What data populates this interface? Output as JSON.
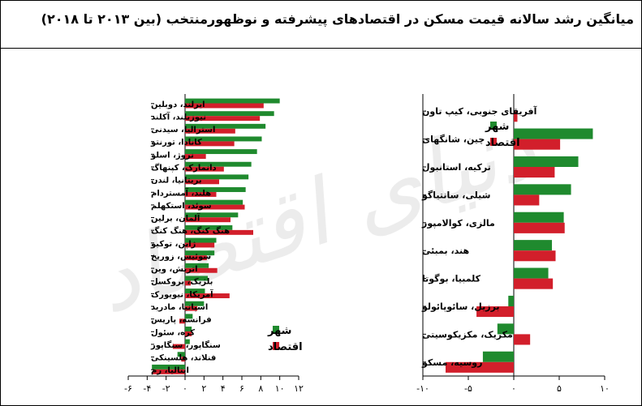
{
  "title": "میانگین رشد سالانه قیمت مسکن در اقتصادهای پیشرفته و نوظهورمنتخب (بین ۲۰۱۳ تا ۲۰۱۸)",
  "watermark": "دنیای اقتصاد",
  "colors": {
    "city": "#1f8a2e",
    "economy": "#d21f2b",
    "city_faded": "#7ec98a",
    "economy_faded": "#f0908a"
  },
  "chart_data": [
    {
      "type": "bar",
      "orientation": "horizontal",
      "title": "",
      "xlim": [
        -6,
        12
      ],
      "xticks": [
        -6,
        -4,
        -2,
        0,
        2,
        4,
        6,
        8,
        10,
        12
      ],
      "legend": {
        "position": "bottom-left",
        "entries": [
          "شهر",
          "اقتصاد"
        ]
      },
      "categories": [
        "ایرلند، دوبلین",
        "نیوزیلند، آکلند",
        "استرالیا، سیدنی",
        "کانادا، تورنتو",
        "نروژ، اسلو",
        "دانمارک، کپنهاگ",
        "بریتانیا، لندن",
        "هلند، آمستردام",
        "سوئد، استکهلم",
        "آلمان، برلین",
        "هنگ کنگ، هنگ کنگ",
        "ژاپن، توکیو",
        "سوئیس، زوریخ",
        "اتریش، وین",
        "بلژیک، بروکسل",
        "آمریکا، نیویورک",
        "اسپانیا، مادرید",
        "فرانسه، پاریس",
        "کره، سئول",
        "سنگاپور، سنگاپور",
        "فنلاند، هلسینکی",
        "ایتالیا، رم"
      ],
      "series": [
        {
          "name": "شهر",
          "values": [
            10.0,
            9.4,
            8.5,
            8.1,
            7.6,
            7.0,
            6.7,
            6.4,
            6.1,
            5.6,
            5.0,
            3.3,
            3.1,
            2.5,
            2.4,
            2.1,
            2.0,
            0.8,
            0.7,
            0.5,
            -0.8,
            -3.5
          ]
        },
        {
          "name": "اقتصاد",
          "values": [
            8.3,
            7.9,
            5.3,
            5.2,
            2.2,
            4.1,
            3.6,
            3.3,
            6.3,
            4.8,
            7.2,
            3.1,
            2.3,
            3.4,
            0.6,
            4.7,
            1.3,
            -0.6,
            0.7,
            -1.3,
            -0.4,
            -3.4
          ]
        }
      ]
    },
    {
      "type": "bar",
      "orientation": "horizontal",
      "title": "",
      "xlim": [
        -10,
        10
      ],
      "xticks": [
        -10,
        -5,
        0,
        5,
        10
      ],
      "legend": {
        "position": "top-right",
        "entries": [
          "شهر",
          "اقتصاد"
        ]
      },
      "categories": [
        "آفریقای جنوبی، کیپ تاون",
        "چین، شانگهای",
        "ترکیه، استانبول",
        "شیلی، سانتیاگو",
        "مالزی، کوالامپور",
        "هند، بمبئی",
        "کلمبیا، بوگوتا",
        "برزیل، سائوپائولو",
        "مکزیک، مکزیکوسیتی",
        "روسیه، مسکو"
      ],
      "series": [
        {
          "name": "شهر",
          "values": [
            0.0,
            8.7,
            7.1,
            6.3,
            5.5,
            4.2,
            3.8,
            -0.6,
            -1.8,
            -3.4
          ]
        },
        {
          "name": "اقتصاد",
          "values": [
            0.4,
            5.1,
            4.5,
            2.8,
            5.6,
            4.6,
            4.3,
            -4.1,
            1.8,
            -7.5
          ]
        }
      ]
    }
  ]
}
